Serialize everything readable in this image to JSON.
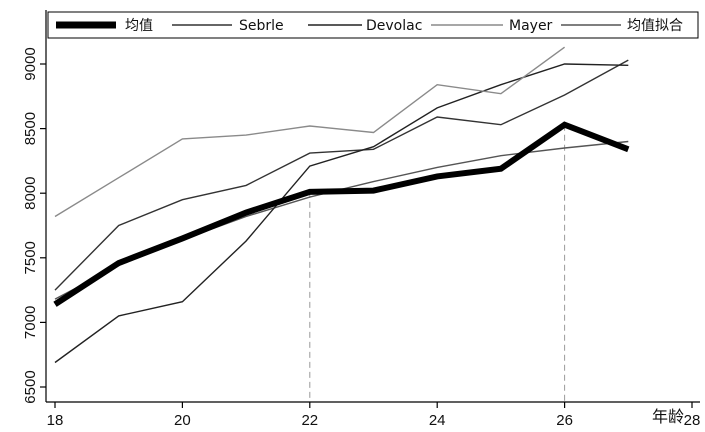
{
  "chart_data": {
    "type": "line",
    "xlabel": "年龄",
    "ylabel": "",
    "xlim": [
      18,
      28
    ],
    "ylim": [
      6500,
      9250
    ],
    "x_ticks": [
      18,
      20,
      22,
      24,
      26,
      28
    ],
    "y_ticks": [
      6500,
      7000,
      7500,
      8000,
      8500,
      9000
    ],
    "grid": false,
    "legend": "top",
    "reference_lines_x": [
      22,
      26
    ],
    "x": [
      18,
      19,
      20,
      21,
      22,
      23,
      24,
      25,
      26,
      27
    ],
    "series": [
      {
        "name": "均值",
        "values": [
          7140,
          7460,
          7650,
          7850,
          8010,
          8020,
          8130,
          8190,
          8530,
          8340
        ],
        "color": "#000000",
        "style": "thick"
      },
      {
        "name": "Sebrle",
        "values": [
          7250,
          7750,
          7950,
          8060,
          8310,
          8340,
          8590,
          8530,
          8760,
          9030
        ],
        "color": "#333333",
        "style": "thin"
      },
      {
        "name": "Devolac",
        "values": [
          6690,
          7050,
          7160,
          7630,
          8210,
          8360,
          8660,
          8840,
          9000,
          8990
        ],
        "color": "#222222",
        "style": "thin"
      },
      {
        "name": "Mayer",
        "values": [
          7820,
          8120,
          8420,
          8450,
          8520,
          8470,
          8840,
          8770,
          9130,
          null
        ],
        "color": "#8a8a8a",
        "style": "thin"
      },
      {
        "name": "均值拟合",
        "values": [
          7180,
          7440,
          7640,
          7820,
          7970,
          8090,
          8200,
          8290,
          8350,
          8400
        ],
        "color": "#555555",
        "style": "thin"
      }
    ]
  }
}
